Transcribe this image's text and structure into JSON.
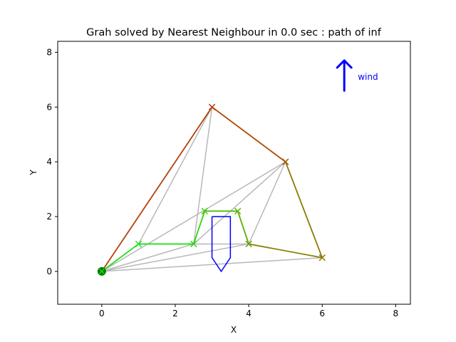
{
  "chart_data": {
    "type": "line",
    "title": "Grah solved by Nearest Neighbour in 0.0 sec : path of inf",
    "xlabel": "X",
    "ylabel": "Y",
    "xlim": [
      -1.2,
      8.4
    ],
    "ylim": [
      -1.2,
      8.4
    ],
    "xticks": [
      0,
      2,
      4,
      6,
      8
    ],
    "yticks": [
      0,
      2,
      4,
      6,
      8
    ],
    "grid": false,
    "start": {
      "x": 0,
      "y": 0,
      "color": "#007f00"
    },
    "graph_edges": {
      "color": "#b8b8b8",
      "lines": [
        [
          [
            0,
            0
          ],
          [
            1,
            1
          ]
        ],
        [
          [
            0,
            0
          ],
          [
            2.5,
            1
          ]
        ],
        [
          [
            0,
            0
          ],
          [
            3,
            6
          ]
        ],
        [
          [
            0,
            0
          ],
          [
            4,
            1
          ]
        ],
        [
          [
            0,
            0
          ],
          [
            5,
            4
          ]
        ],
        [
          [
            0,
            0
          ],
          [
            6,
            0.5
          ]
        ],
        [
          [
            1,
            1
          ],
          [
            3,
            6
          ]
        ],
        [
          [
            2.5,
            1
          ],
          [
            3,
            6
          ]
        ],
        [
          [
            2.5,
            1
          ],
          [
            4,
            1
          ]
        ],
        [
          [
            2.5,
            1
          ],
          [
            5,
            4
          ]
        ],
        [
          [
            4,
            1
          ],
          [
            5,
            4
          ]
        ],
        [
          [
            4,
            1
          ],
          [
            6,
            0.5
          ]
        ]
      ]
    },
    "path_segments": [
      {
        "from": [
          0,
          0
        ],
        "to": [
          1,
          1
        ],
        "color": "#22e01c"
      },
      {
        "from": [
          1,
          1
        ],
        "to": [
          2.5,
          1
        ],
        "color": "#22e01c"
      },
      {
        "from": [
          2.5,
          1
        ],
        "to": [
          2.8,
          2.2
        ],
        "color": "#30d410"
      },
      {
        "from": [
          2.8,
          2.2
        ],
        "to": [
          3.7,
          2.2
        ],
        "color": "#4cc00a"
      },
      {
        "from": [
          3.7,
          2.2
        ],
        "to": [
          4,
          1
        ],
        "color": "#60ae06"
      },
      {
        "from": [
          4,
          1
        ],
        "to": [
          6,
          0.5
        ],
        "color": "#8c8408"
      },
      {
        "from": [
          6,
          0.5
        ],
        "to": [
          5,
          4
        ],
        "color": "#8c7a04"
      },
      {
        "from": [
          5,
          4
        ],
        "to": [
          3,
          6
        ],
        "color": "#b04a08"
      },
      {
        "from": [
          3,
          6
        ],
        "to": [
          0,
          0
        ],
        "color": "#b8400c"
      }
    ],
    "nodes": [
      {
        "x": 1,
        "y": 1,
        "color": "#22e01c"
      },
      {
        "x": 2.5,
        "y": 1,
        "color": "#30d410"
      },
      {
        "x": 2.8,
        "y": 2.2,
        "color": "#44c80e"
      },
      {
        "x": 3.7,
        "y": 2.2,
        "color": "#58b60a"
      },
      {
        "x": 4,
        "y": 1,
        "color": "#6c9a08"
      },
      {
        "x": 6,
        "y": 0.5,
        "color": "#8c7a04"
      },
      {
        "x": 5,
        "y": 4,
        "color": "#a25a06"
      },
      {
        "x": 3,
        "y": 6,
        "color": "#b8400c"
      }
    ],
    "obstacle": {
      "color": "#0000ff",
      "points": [
        [
          3,
          2
        ],
        [
          3.5,
          2
        ],
        [
          3.5,
          0.5
        ],
        [
          3.25,
          0
        ],
        [
          3,
          0.5
        ],
        [
          3,
          2
        ]
      ]
    },
    "wind": {
      "label": "wind",
      "color": "#0000ff",
      "from": [
        6.6,
        6.6
      ],
      "to": [
        6.6,
        7.7
      ]
    }
  }
}
